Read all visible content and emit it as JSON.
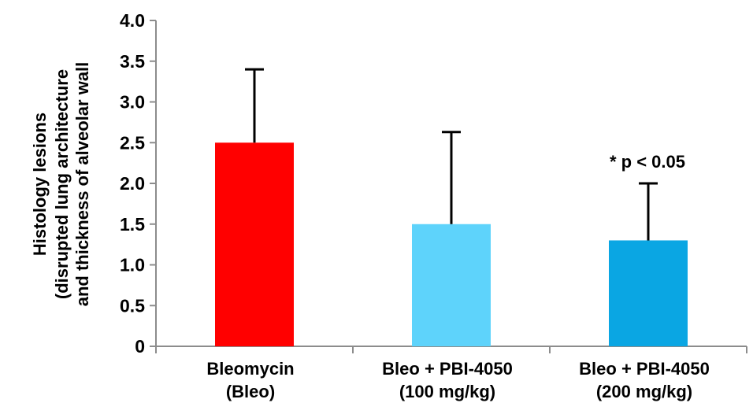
{
  "chart_data": {
    "type": "bar",
    "categories": [
      [
        "Bleomycin",
        "(Bleo)"
      ],
      [
        "Bleo + PBI-4050",
        "(100 mg/kg)"
      ],
      [
        "Bleo + PBI-4050",
        "(200 mg/kg)"
      ]
    ],
    "values": [
      2.5,
      1.5,
      1.3
    ],
    "error_plus": [
      0.9,
      1.13,
      0.7
    ],
    "colors": [
      "#ff0000",
      "#5ed3fb",
      "#0aa6e3"
    ],
    "ylabel_lines": [
      "Histology lesions",
      "(disrupted lung architecture",
      "and thickness of alveolar wall"
    ],
    "yticks": [
      "0",
      "0.5",
      "1.0",
      "1.5",
      "2.0",
      "2.5",
      "3.0",
      "3.5",
      "4.0"
    ],
    "ylim": [
      0,
      4.0
    ],
    "annotation": "* p < 0.05",
    "grid": false,
    "legend": "none"
  }
}
